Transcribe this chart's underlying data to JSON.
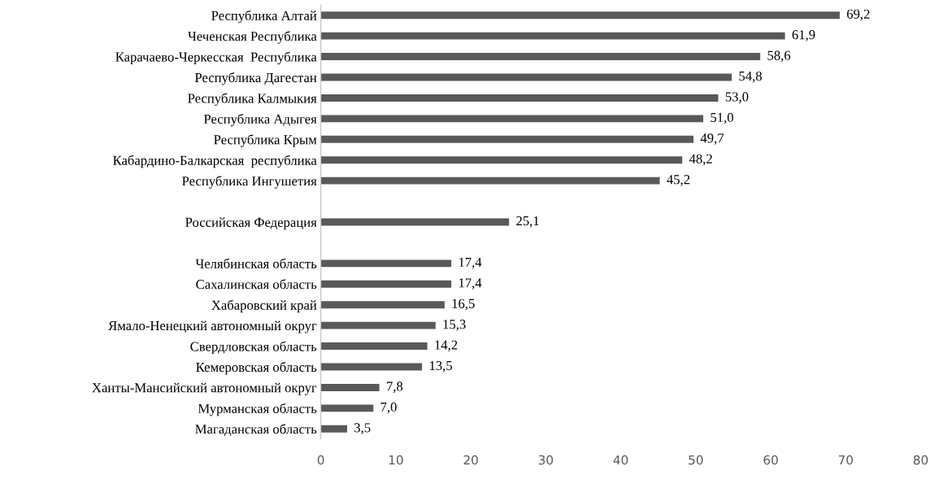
{
  "chart_data": {
    "type": "bar",
    "orientation": "horizontal",
    "categories": [
      "Республика Алтай",
      "Чеченская Республика",
      "Карачаево-Черкесская  Республика",
      "Республика Дагестан",
      "Республика Калмыкия",
      "Республика Адыгея",
      "Республика Крым",
      "Кабардино-Балкарская  республика",
      "Республика Ингушетия",
      null,
      "Российская Федерация",
      null,
      "Челябинская область",
      "Сахалинская область",
      "Хабаровский край",
      "Ямало-Ненецкий автономный округ",
      "Свердловская область",
      "Кемеровская область",
      "Ханты-Мансийский автономный округ",
      "Мурманская область",
      "Магаданская область"
    ],
    "values": [
      69.2,
      61.9,
      58.6,
      54.8,
      53.0,
      51.0,
      49.7,
      48.2,
      45.2,
      null,
      25.1,
      null,
      17.4,
      17.4,
      16.5,
      15.3,
      14.2,
      13.5,
      7.8,
      7.0,
      3.5
    ],
    "value_labels": [
      "69,2",
      "61,9",
      "58,6",
      "54,8",
      "53,0",
      "51,0",
      "49,7",
      "48,2",
      "45,2",
      null,
      "25,1",
      null,
      "17,4",
      "17,4",
      "16,5",
      "15,3",
      "14,2",
      "13,5",
      "7,8",
      "7,0",
      "3,5"
    ],
    "color": "#595959",
    "xlim": [
      0,
      80
    ],
    "xticks": [
      0,
      10,
      20,
      30,
      40,
      50,
      60,
      70,
      80
    ],
    "grid": false,
    "legend": false
  }
}
